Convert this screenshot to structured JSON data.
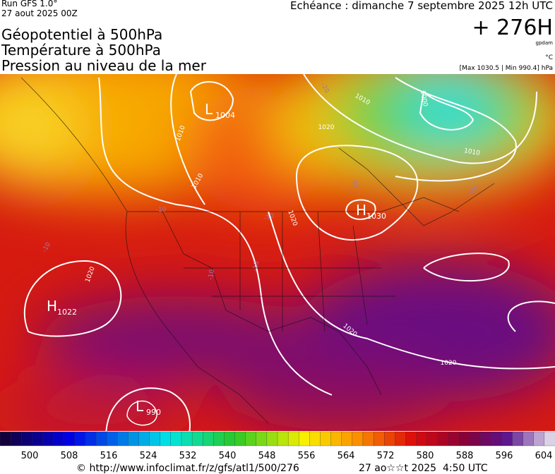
{
  "header": {
    "run": "Run GFS 1.0°",
    "run_date": "27 aout 2025 00Z",
    "forecast": "Echéance : dimanche 7 septembre 2025 12h UTC",
    "lead_time": "+ 276H",
    "lead_unit": "gpdam",
    "temp_unit": "°C",
    "pressure_range": "[Max 1030.5 | Min 990.4] hPa",
    "titles": [
      "Géopotentiel à 500hPa",
      "Température à 500hPa",
      "Pression au niveau de la mer"
    ]
  },
  "map": {
    "centers": [
      {
        "type": "L",
        "value": "1004"
      },
      {
        "type": "H",
        "value": "1030"
      },
      {
        "type": "H",
        "value": "1022"
      },
      {
        "type": "L",
        "value": "990"
      }
    ],
    "isobar_labels": [
      "1010",
      "1010",
      "1020",
      "1020",
      "1010",
      "1000",
      "1010",
      "1020",
      "1020",
      "1020"
    ],
    "temperature_labels": [
      "-20",
      "-20",
      "-20",
      "-10",
      "-10",
      "-10",
      "-10",
      "-10"
    ]
  },
  "scale": {
    "labels": [
      500,
      508,
      516,
      524,
      532,
      540,
      548,
      556,
      564,
      572,
      580,
      588,
      596,
      604
    ]
  },
  "footer": {
    "source": "© http://www.infoclimat.fr/z/gfs/atl1/500/276",
    "generated": "27 ao☆☆t 2025  4:50 UTC"
  }
}
